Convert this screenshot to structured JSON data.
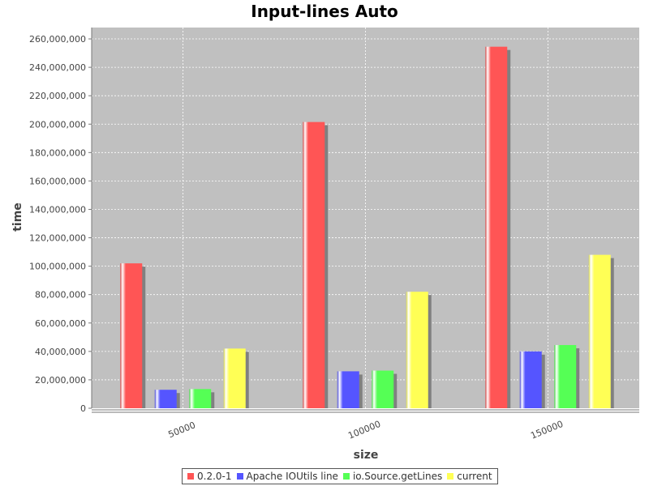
{
  "chart_data": {
    "type": "bar",
    "title": "Input-lines Auto",
    "xlabel": "size",
    "ylabel": "time",
    "categories": [
      "50000",
      "100000",
      "150000"
    ],
    "ylim": [
      0,
      268000000
    ],
    "yticks": [
      0,
      20000000,
      40000000,
      60000000,
      80000000,
      100000000,
      120000000,
      140000000,
      160000000,
      180000000,
      200000000,
      220000000,
      240000000,
      260000000
    ],
    "ytick_labels": [
      "0",
      "20,000,000",
      "40,000,000",
      "60,000,000",
      "80,000,000",
      "100,000,000",
      "120,000,000",
      "140,000,000",
      "160,000,000",
      "180,000,000",
      "200,000,000",
      "220,000,000",
      "240,000,000",
      "260,000,000"
    ],
    "grid": true,
    "legend_position": "bottom",
    "background": "#c0c0c0",
    "series": [
      {
        "name": "0.2.0-1",
        "color": "#ff5555",
        "values": [
          102000000,
          201500000,
          254500000
        ]
      },
      {
        "name": "Apache IOUtils line",
        "color": "#5555ff",
        "values": [
          13000000,
          26000000,
          40000000
        ]
      },
      {
        "name": "io.Source.getLines",
        "color": "#55ff55",
        "values": [
          13500000,
          26500000,
          44500000
        ]
      },
      {
        "name": "current",
        "color": "#ffff55",
        "values": [
          42000000,
          82000000,
          108000000
        ]
      }
    ]
  }
}
